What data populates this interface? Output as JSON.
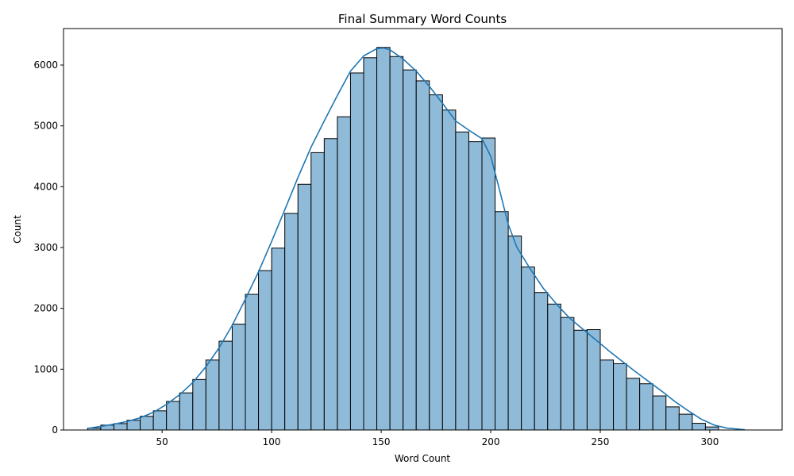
{
  "chart_data": {
    "type": "bar",
    "subtype": "histogram",
    "title": "Final Summary Word Counts",
    "xlabel": "Word Count",
    "ylabel": "Count",
    "xlim": [
      5,
      333
    ],
    "ylim": [
      0,
      6600
    ],
    "x_ticks": [
      50,
      100,
      150,
      200,
      250,
      300
    ],
    "y_ticks": [
      0,
      1000,
      2000,
      3000,
      4000,
      5000,
      6000
    ],
    "bin_start": 16,
    "bin_width": 6,
    "values": [
      30,
      80,
      105,
      160,
      225,
      315,
      470,
      610,
      830,
      1150,
      1460,
      1740,
      2230,
      2620,
      2990,
      3560,
      4040,
      4560,
      4790,
      5150,
      5870,
      6120,
      6290,
      6140,
      5920,
      5740,
      5510,
      5260,
      4900,
      4740,
      4800,
      3590,
      3190,
      2680,
      2260,
      2070,
      1850,
      1640,
      1650,
      1150,
      1090,
      850,
      760,
      560,
      380,
      260,
      110,
      50
    ],
    "kde": {
      "x": [
        16,
        22,
        28,
        34,
        40,
        46,
        52,
        58,
        64,
        70,
        76,
        82,
        88,
        94,
        100,
        106,
        112,
        118,
        124,
        130,
        136,
        142,
        148,
        151,
        154,
        160,
        166,
        172,
        178,
        184,
        190,
        196,
        200,
        204,
        208,
        212,
        218,
        224,
        230,
        236,
        242,
        248,
        254,
        260,
        266,
        272,
        278,
        284,
        290,
        296,
        302,
        308,
        316
      ],
      "y": [
        25,
        60,
        95,
        140,
        200,
        290,
        420,
        580,
        780,
        1040,
        1350,
        1720,
        2150,
        2600,
        3100,
        3620,
        4150,
        4650,
        5080,
        5500,
        5900,
        6150,
        6270,
        6280,
        6250,
        6100,
        5900,
        5650,
        5370,
        5080,
        4930,
        4790,
        4500,
        3950,
        3380,
        3000,
        2650,
        2330,
        2070,
        1840,
        1660,
        1480,
        1300,
        1130,
        960,
        800,
        640,
        470,
        320,
        180,
        80,
        30,
        5
      ],
      "color": "#1f77b4"
    },
    "bar_fill": "#8fbbd9",
    "bar_stroke": "#000000",
    "legend": "none",
    "grid": false
  }
}
